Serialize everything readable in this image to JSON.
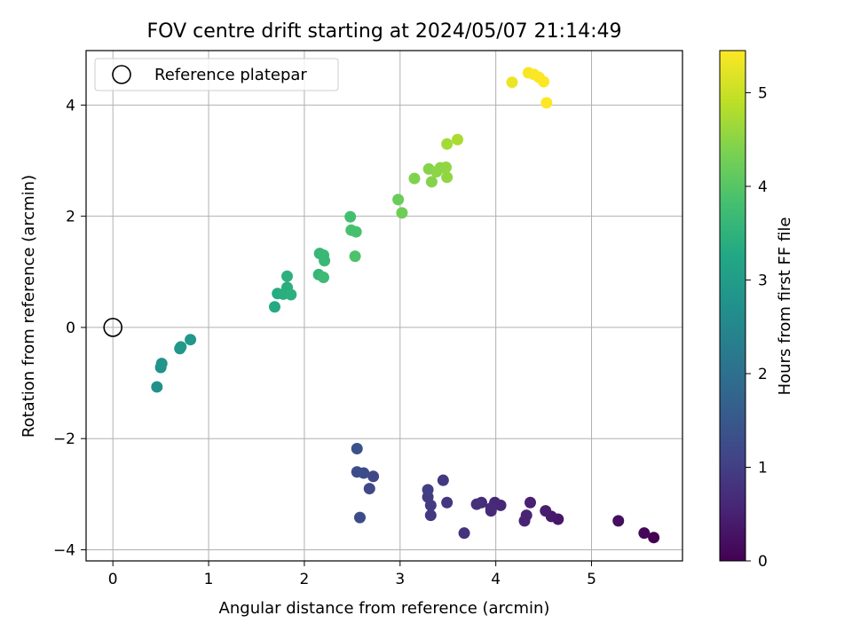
{
  "chart_data": {
    "type": "scatter",
    "title": "FOV centre drift starting at 2024/05/07 21:14:49",
    "xlabel": "Angular distance from reference (arcmin)",
    "ylabel": "Rotation from reference (arcmin)",
    "xlim": [
      -0.28,
      5.95
    ],
    "ylim": [
      -4.2,
      4.98
    ],
    "xticks": [
      0,
      1,
      2,
      3,
      4,
      5
    ],
    "yticks": [
      -4,
      -2,
      0,
      2,
      4
    ],
    "xtick_labels": [
      "0",
      "1",
      "2",
      "3",
      "4",
      "5"
    ],
    "ytick_labels": [
      "−4",
      "−2",
      "0",
      "2",
      "4"
    ],
    "grid": true,
    "legend": {
      "position": "top-left",
      "entries": [
        "Reference platepar"
      ]
    },
    "reference_point": {
      "x": 0,
      "y": 0,
      "marker": "open-circle"
    },
    "colorbar": {
      "label": "Hours from first FF file",
      "colormap": "viridis",
      "range": [
        0,
        5.45
      ],
      "ticks": [
        0,
        1,
        2,
        3,
        4,
        5
      ],
      "tick_labels": [
        "0",
        "1",
        "2",
        "3",
        "4",
        "5"
      ]
    },
    "points": [
      {
        "x": 5.65,
        "y": -3.78,
        "c": 0.0
      },
      {
        "x": 5.55,
        "y": -3.7,
        "c": 0.1
      },
      {
        "x": 5.28,
        "y": -3.48,
        "c": 0.2
      },
      {
        "x": 4.65,
        "y": -3.45,
        "c": 0.35
      },
      {
        "x": 4.58,
        "y": -3.4,
        "c": 0.4
      },
      {
        "x": 4.52,
        "y": -3.3,
        "c": 0.45
      },
      {
        "x": 4.36,
        "y": -3.15,
        "c": 0.5
      },
      {
        "x": 4.32,
        "y": -3.38,
        "c": 0.55
      },
      {
        "x": 4.3,
        "y": -3.48,
        "c": 0.55
      },
      {
        "x": 4.05,
        "y": -3.2,
        "c": 0.6
      },
      {
        "x": 3.99,
        "y": -3.15,
        "c": 0.62
      },
      {
        "x": 3.95,
        "y": -3.25,
        "c": 0.65
      },
      {
        "x": 3.95,
        "y": -3.3,
        "c": 0.65
      },
      {
        "x": 3.85,
        "y": -3.15,
        "c": 0.7
      },
      {
        "x": 3.8,
        "y": -3.18,
        "c": 0.75
      },
      {
        "x": 3.67,
        "y": -3.7,
        "c": 0.8
      },
      {
        "x": 3.49,
        "y": -3.15,
        "c": 0.85
      },
      {
        "x": 3.45,
        "y": -2.75,
        "c": 0.9
      },
      {
        "x": 3.32,
        "y": -3.38,
        "c": 0.9
      },
      {
        "x": 3.32,
        "y": -3.2,
        "c": 0.95
      },
      {
        "x": 3.29,
        "y": -3.05,
        "c": 0.95
      },
      {
        "x": 3.29,
        "y": -2.92,
        "c": 1.0
      },
      {
        "x": 2.72,
        "y": -2.68,
        "c": 1.15
      },
      {
        "x": 2.68,
        "y": -2.9,
        "c": 1.2
      },
      {
        "x": 2.62,
        "y": -2.62,
        "c": 1.25
      },
      {
        "x": 2.58,
        "y": -3.42,
        "c": 1.25
      },
      {
        "x": 2.55,
        "y": -2.6,
        "c": 1.3
      },
      {
        "x": 2.55,
        "y": -2.18,
        "c": 1.35
      },
      {
        "x": 0.46,
        "y": -1.07,
        "c": 2.7
      },
      {
        "x": 0.5,
        "y": -0.72,
        "c": 2.75
      },
      {
        "x": 0.51,
        "y": -0.65,
        "c": 2.8
      },
      {
        "x": 0.7,
        "y": -0.38,
        "c": 2.85
      },
      {
        "x": 0.71,
        "y": -0.35,
        "c": 2.88
      },
      {
        "x": 0.81,
        "y": -0.22,
        "c": 2.9
      },
      {
        "x": 1.69,
        "y": 0.37,
        "c": 3.3
      },
      {
        "x": 1.72,
        "y": 0.61,
        "c": 3.35
      },
      {
        "x": 1.78,
        "y": 0.6,
        "c": 3.4
      },
      {
        "x": 1.82,
        "y": 0.72,
        "c": 3.42
      },
      {
        "x": 1.82,
        "y": 0.92,
        "c": 3.45
      },
      {
        "x": 1.86,
        "y": 0.59,
        "c": 3.45
      },
      {
        "x": 2.15,
        "y": 0.95,
        "c": 3.6
      },
      {
        "x": 2.16,
        "y": 1.33,
        "c": 3.62
      },
      {
        "x": 2.2,
        "y": 1.3,
        "c": 3.65
      },
      {
        "x": 2.21,
        "y": 1.2,
        "c": 3.65
      },
      {
        "x": 2.2,
        "y": 0.9,
        "c": 3.7
      },
      {
        "x": 2.48,
        "y": 1.99,
        "c": 3.8
      },
      {
        "x": 2.49,
        "y": 1.75,
        "c": 3.85
      },
      {
        "x": 2.54,
        "y": 1.72,
        "c": 3.85
      },
      {
        "x": 2.53,
        "y": 1.28,
        "c": 3.9
      },
      {
        "x": 2.98,
        "y": 2.3,
        "c": 4.2
      },
      {
        "x": 3.02,
        "y": 2.06,
        "c": 4.25
      },
      {
        "x": 3.15,
        "y": 2.68,
        "c": 4.4
      },
      {
        "x": 3.3,
        "y": 2.85,
        "c": 4.45
      },
      {
        "x": 3.33,
        "y": 2.62,
        "c": 4.45
      },
      {
        "x": 3.38,
        "y": 2.8,
        "c": 4.5
      },
      {
        "x": 3.42,
        "y": 2.87,
        "c": 4.5
      },
      {
        "x": 3.48,
        "y": 2.88,
        "c": 4.55
      },
      {
        "x": 3.49,
        "y": 2.7,
        "c": 4.55
      },
      {
        "x": 3.49,
        "y": 3.3,
        "c": 4.7
      },
      {
        "x": 3.6,
        "y": 3.38,
        "c": 4.75
      },
      {
        "x": 4.17,
        "y": 4.41,
        "c": 5.3
      },
      {
        "x": 4.34,
        "y": 4.58,
        "c": 5.4
      },
      {
        "x": 4.4,
        "y": 4.55,
        "c": 5.42
      },
      {
        "x": 4.45,
        "y": 4.5,
        "c": 5.43
      },
      {
        "x": 4.5,
        "y": 4.42,
        "c": 5.44
      },
      {
        "x": 4.53,
        "y": 4.04,
        "c": 5.45
      }
    ]
  }
}
